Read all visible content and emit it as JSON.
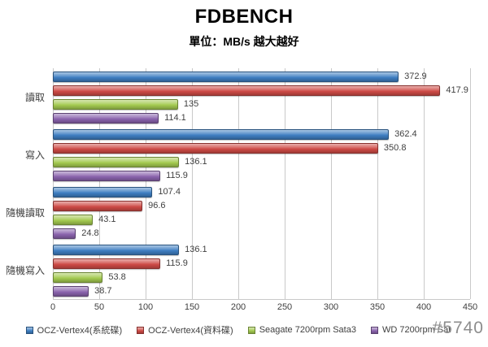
{
  "title": "FDBENCH",
  "subtitle": "單位：MB/s 越大越好",
  "watermark": "#5740",
  "colors": {
    "background": "#ffffff",
    "gridline": "#c9c9c9",
    "text": "#3f3f3f",
    "watermark_gray": "#8d8d8d"
  },
  "chart_data": {
    "type": "bar",
    "orientation": "horizontal",
    "title": "FDBENCH",
    "subtitle": "單位：MB/s 越大越好",
    "categories": [
      "讀取",
      "寫入",
      "隨機讀取",
      "隨機寫入"
    ],
    "series": [
      {
        "name": "OCZ-Vertex4(系統碟)",
        "color": "#3e7ec1",
        "values": [
          372.9,
          362.4,
          107.4,
          136.1
        ]
      },
      {
        "name": "OCZ-Vertex4(資料碟)",
        "color": "#ce4a45",
        "values": [
          417.9,
          350.8,
          96.6,
          115.9
        ]
      },
      {
        "name": "Seagate 7200rpm Sata3",
        "color": "#a3c94f",
        "values": [
          135,
          136.1,
          43.1,
          53.8
        ]
      },
      {
        "name": "WD 7200rpm Sat",
        "color": "#8a63ad",
        "values": [
          114.1,
          115.9,
          24.8,
          38.7
        ]
      }
    ],
    "xlim": [
      0,
      450
    ],
    "x_ticks": [
      0,
      50,
      100,
      150,
      200,
      250,
      300,
      350,
      400,
      450
    ],
    "grid": true,
    "data_labels": true,
    "legend_position": "bottom"
  }
}
